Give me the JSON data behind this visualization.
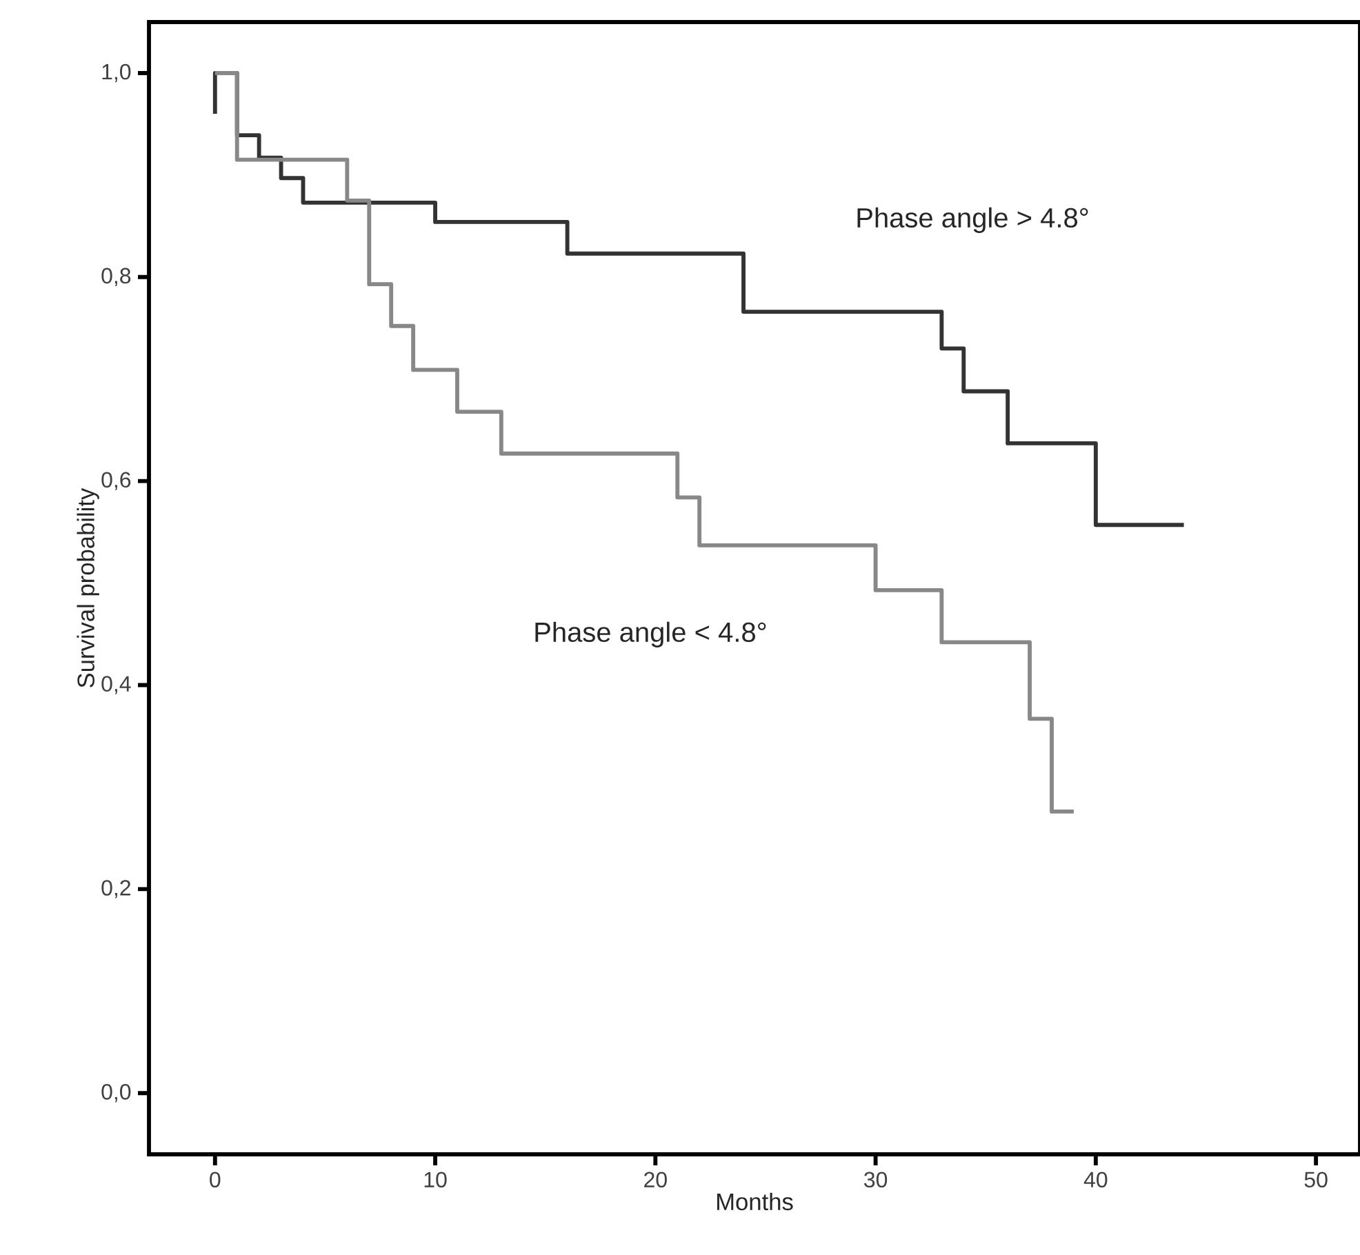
{
  "chart_data": {
    "type": "step",
    "xlabel": "Months",
    "ylabel": "Survival probability",
    "xlim": [
      -3,
      52
    ],
    "ylim": [
      -0.06,
      1.05
    ],
    "xticks": [
      0,
      10,
      20,
      30,
      40,
      50
    ],
    "yticks": [
      {
        "value": 0,
        "label": "0,0"
      },
      {
        "value": 0.2,
        "label": "0,2"
      },
      {
        "value": 0.4,
        "label": "0,4"
      },
      {
        "value": 0.6,
        "label": "0,6"
      },
      {
        "value": 0.8,
        "label": "0,8"
      },
      {
        "value": 1,
        "label": "1,0"
      }
    ],
    "legend": false,
    "series": [
      {
        "name": "Phase angle  >  4.8°",
        "color": "#333333",
        "x": [
          0,
          0,
          1,
          2,
          3,
          4,
          10,
          16,
          24,
          33,
          34,
          36,
          40,
          44
        ],
        "values": [
          0.96,
          1.0,
          0.939,
          0.917,
          0.897,
          0.873,
          0.854,
          0.823,
          0.766,
          0.73,
          0.688,
          0.637,
          0.557,
          0.557
        ]
      },
      {
        "name": "Phase angle  <  4.8°",
        "color": "#888888",
        "x": [
          0,
          1,
          6,
          7,
          8,
          9,
          11,
          13,
          21,
          22,
          30,
          33,
          37,
          38,
          39
        ],
        "values": [
          1.0,
          0.915,
          0.875,
          0.793,
          0.752,
          0.709,
          0.668,
          0.627,
          0.584,
          0.537,
          0.493,
          0.442,
          0.367,
          0.276,
          0.276
        ]
      }
    ]
  }
}
